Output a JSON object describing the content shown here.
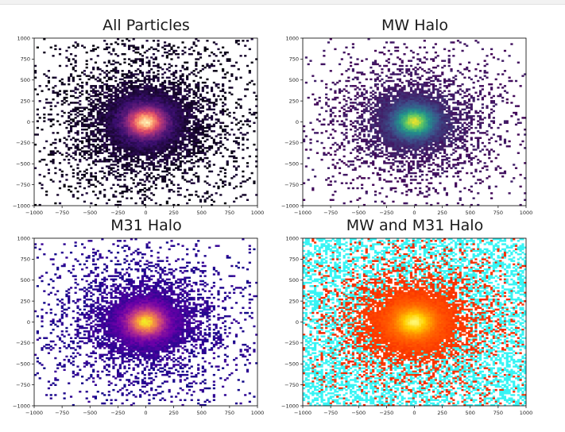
{
  "chart_data": [
    {
      "type": "heatmap",
      "title": "All Particles",
      "colormap": "magma",
      "colors": [
        "#000004",
        "#3b0f70",
        "#8c2981",
        "#de4968",
        "#fe9f6d",
        "#fcfdbf"
      ],
      "xlim": [
        -1000,
        1000
      ],
      "ylim": [
        -1000,
        1000
      ],
      "xticks": [
        -1000,
        -750,
        -500,
        -250,
        0,
        250,
        500,
        750,
        1000
      ],
      "yticks": [
        1000,
        750,
        500,
        250,
        0,
        -250,
        -500,
        -750,
        -1000
      ],
      "peak": [
        0,
        0
      ],
      "bins": 100
    },
    {
      "type": "heatmap",
      "title": "MW Halo",
      "colormap": "viridis",
      "colors": [
        "#440154",
        "#3b528b",
        "#21918c",
        "#5ec962",
        "#fde725"
      ],
      "xlim": [
        -1000,
        1000
      ],
      "ylim": [
        -1000,
        1000
      ],
      "xticks": [
        -1000,
        -750,
        -500,
        -250,
        0,
        250,
        500,
        750,
        1000
      ],
      "yticks": [
        1000,
        750,
        500,
        250,
        0,
        -250,
        -500,
        -750,
        -1000
      ],
      "peak": [
        0,
        0
      ],
      "bins": 100
    },
    {
      "type": "heatmap",
      "title": "M31 Halo",
      "colormap": "plasma",
      "colors": [
        "#0d0887",
        "#6a00a8",
        "#b12a90",
        "#e16462",
        "#fca636",
        "#f0f921"
      ],
      "xlim": [
        -1000,
        1000
      ],
      "ylim": [
        -1000,
        1000
      ],
      "xticks": [
        -1000,
        -750,
        -500,
        -250,
        0,
        250,
        500,
        750,
        1000
      ],
      "yticks": [
        1000,
        750,
        500,
        250,
        0,
        -250,
        -500,
        -750,
        -1000
      ],
      "peak": [
        0,
        0
      ],
      "bins": 100
    },
    {
      "type": "heatmap",
      "title": "MW and M31 Halo",
      "colormap": "hot / cool overlay",
      "colors": [
        "#e80000",
        "#ff4a00",
        "#ff8c00",
        "#ffd000",
        "#fffc80"
      ],
      "overlay_color": "#38f4f4",
      "xlim": [
        -1000,
        1000
      ],
      "ylim": [
        -1000,
        1000
      ],
      "xticks": [
        -1000,
        -750,
        -500,
        -250,
        0,
        250,
        500,
        750,
        1000
      ],
      "yticks": [
        1000,
        750,
        500,
        250,
        0,
        -250,
        -500,
        -750,
        -1000
      ],
      "peak": [
        0,
        0
      ],
      "bins": 100
    }
  ]
}
